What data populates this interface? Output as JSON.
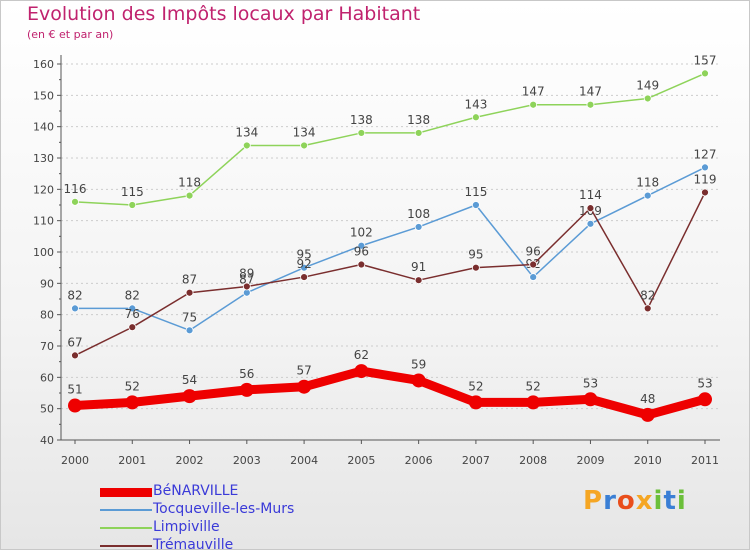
{
  "header": {
    "title": "Evolution des Impôts locaux par Habitant",
    "subtitle": "(en € et par an)"
  },
  "logo_text": "Proxiti",
  "logo_letters": [
    {
      "ch": "P",
      "color": "#f5a623"
    },
    {
      "ch": "r",
      "color": "#3a7fd5"
    },
    {
      "ch": "o",
      "color": "#e94e1b"
    },
    {
      "ch": "x",
      "color": "#f5a623"
    },
    {
      "ch": "i",
      "color": "#6bbf3a"
    },
    {
      "ch": "t",
      "color": "#3a7fd5"
    },
    {
      "ch": "i",
      "color": "#6bbf3a"
    }
  ],
  "colors": {
    "title": "#c0226e",
    "axis": "#555555",
    "grid": "#cccccc",
    "label": "#444444",
    "legend_text": "#3a3ad8"
  },
  "chart_data": {
    "type": "line",
    "title": "Evolution des Impôts locaux par Habitant",
    "subtitle": "(en € et par an)",
    "xlabel": "",
    "ylabel": "",
    "categories": [
      "2000",
      "2001",
      "2002",
      "2003",
      "2004",
      "2005",
      "2006",
      "2007",
      "2008",
      "2009",
      "2010",
      "2011"
    ],
    "ylim": [
      40,
      160
    ],
    "yticks": [
      40,
      50,
      60,
      70,
      80,
      90,
      100,
      110,
      120,
      130,
      140,
      150,
      160
    ],
    "grid": "horizontal-dashed",
    "legend_position": "bottom-left",
    "series": [
      {
        "name": "BéNARVILLE",
        "color": "#ee0000",
        "thick": true,
        "values": [
          51,
          52,
          54,
          56,
          57,
          62,
          59,
          52,
          52,
          53,
          48,
          53
        ]
      },
      {
        "name": "Tocqueville-les-Murs",
        "color": "#5b9bd5",
        "thick": false,
        "values": [
          82,
          82,
          75,
          87,
          95,
          102,
          108,
          115,
          92,
          109,
          118,
          127
        ]
      },
      {
        "name": "Limpiville",
        "color": "#8ed35a",
        "thick": false,
        "values": [
          116,
          115,
          118,
          134,
          134,
          138,
          138,
          143,
          147,
          147,
          149,
          157
        ]
      },
      {
        "name": "Trémauville",
        "color": "#7a2e2e",
        "thick": false,
        "values": [
          67,
          76,
          87,
          89,
          92,
          96,
          91,
          95,
          96,
          114,
          82,
          119
        ]
      }
    ]
  }
}
